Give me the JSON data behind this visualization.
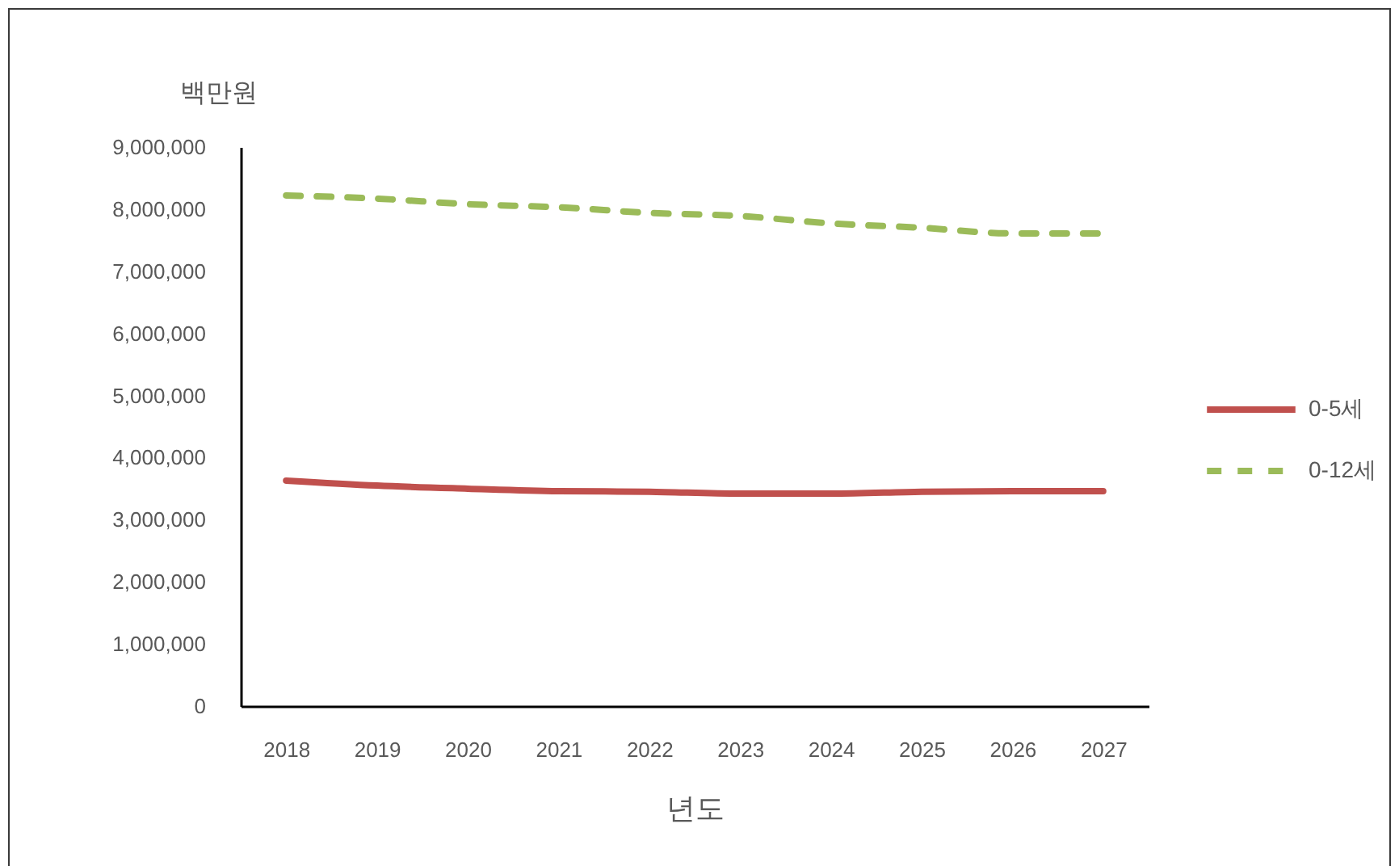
{
  "chart_data": {
    "type": "line",
    "ylabel": "백만원",
    "xlabel": "년도",
    "categories": [
      "2018",
      "2019",
      "2020",
      "2021",
      "2022",
      "2023",
      "2024",
      "2025",
      "2026",
      "2027"
    ],
    "series": [
      {
        "name": "0-5세",
        "color": "#c0504d",
        "line_style": "solid",
        "values": [
          3630000,
          3550000,
          3500000,
          3460000,
          3450000,
          3420000,
          3420000,
          3450000,
          3460000,
          3460000
        ]
      },
      {
        "name": "0-12세",
        "color": "#9bbb59",
        "line_style": "dashed",
        "values": [
          8220000,
          8170000,
          8080000,
          8030000,
          7940000,
          7890000,
          7770000,
          7700000,
          7610000,
          7610000
        ]
      }
    ],
    "ylim": [
      0,
      9000000
    ],
    "yticks": [
      0,
      {
        "value": 1000000,
        "label": "1,000,000"
      },
      {
        "value": 2000000,
        "label": "2,000,000"
      },
      {
        "value": 3000000,
        "label": "3,000,000"
      },
      {
        "value": 4000000,
        "label": "4,000,000"
      },
      {
        "value": 5000000,
        "label": "5,000,000"
      },
      {
        "value": 6000000,
        "label": "6,000,000"
      },
      {
        "value": 7000000,
        "label": "7,000,000"
      },
      {
        "value": 8000000,
        "label": "8,000,000"
      },
      {
        "value": 9000000,
        "label": "9,000,000"
      }
    ],
    "grid": false,
    "legend": "right"
  }
}
